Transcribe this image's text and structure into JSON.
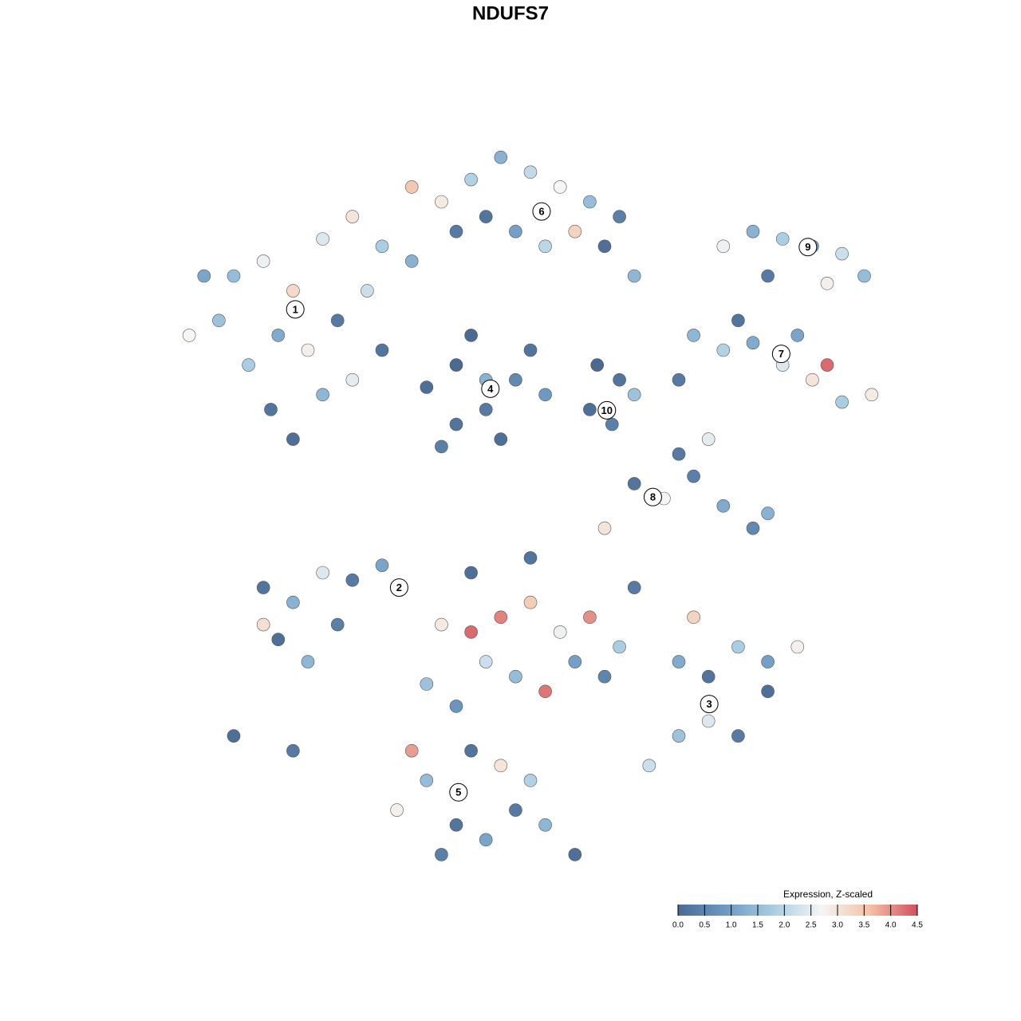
{
  "chart_data": {
    "type": "scatter",
    "title": "NDUFS7",
    "colorbar_title": "Expression, Z-scaled",
    "xlim": [
      0,
      100
    ],
    "ylim": [
      0,
      100
    ],
    "color_stops": [
      0,
      0.9,
      1.8,
      2.7,
      3.6,
      4.5
    ],
    "colors": [
      "#4a6a92",
      "#6d9ac4",
      "#a9cde3",
      "#f5f5f3",
      "#f4c2a8",
      "#d2515e"
    ],
    "colorbar_lim": [
      0,
      4.5
    ],
    "colorbar_ticks": [
      {
        "value": 0,
        "label": "0.0"
      },
      0.5,
      {
        "value": 1,
        "label": "1.0"
      },
      1.5,
      {
        "value": 2,
        "label": "2.0"
      },
      2.5,
      {
        "value": 3,
        "label": "3.0"
      },
      3.5,
      {
        "value": 4,
        "label": "4.0"
      },
      4.5
    ],
    "x": [
      10,
      14,
      18,
      22,
      26,
      30,
      16,
      12,
      20,
      24,
      28,
      8,
      4,
      15,
      18,
      22,
      26,
      30,
      6,
      34,
      34,
      38,
      42,
      46,
      50,
      54,
      58,
      62,
      44,
      48,
      56,
      40,
      60,
      64,
      52,
      36,
      40,
      44,
      48,
      40,
      46,
      50,
      38,
      42,
      52,
      44,
      58,
      61,
      62,
      59,
      64,
      72,
      76,
      80,
      84,
      88,
      92,
      96,
      78,
      86,
      90,
      70,
      76,
      80,
      84,
      88,
      92,
      90,
      95,
      82,
      64,
      68,
      72,
      76,
      80,
      82,
      70,
      60,
      74,
      14,
      18,
      22,
      26,
      30,
      16,
      20,
      14,
      24,
      10,
      18,
      38,
      42,
      46,
      50,
      54,
      58,
      62,
      44,
      48,
      52,
      56,
      60,
      64,
      50,
      42,
      36,
      34,
      40,
      70,
      74,
      78,
      82,
      86,
      74,
      78,
      70,
      66,
      82,
      72,
      32,
      36,
      40,
      44,
      48,
      52,
      56,
      46,
      38,
      50,
      42
    ],
    "y": [
      80,
      82,
      78,
      85,
      88,
      84,
      72,
      68,
      70,
      74,
      78,
      74,
      72,
      62,
      58,
      64,
      66,
      70,
      80,
      82,
      92,
      90,
      93,
      96,
      94,
      92,
      90,
      88,
      88,
      86,
      86,
      86,
      84,
      80,
      84,
      65,
      68,
      62,
      66,
      60,
      58,
      70,
      57,
      72,
      64,
      66,
      62,
      60,
      66,
      68,
      64,
      72,
      70,
      71,
      68,
      66,
      63,
      64,
      74,
      72,
      68,
      66,
      84,
      86,
      85,
      84,
      83,
      79,
      80,
      80,
      52,
      50,
      53,
      49,
      46,
      48,
      56,
      46,
      58,
      38,
      36,
      40,
      39,
      41,
      31,
      28,
      33,
      33,
      18,
      16,
      33,
      32,
      34,
      36,
      32,
      34,
      30,
      28,
      26,
      24,
      28,
      26,
      38,
      42,
      40,
      25,
      16,
      22,
      28,
      26,
      30,
      28,
      30,
      20,
      18,
      18,
      14,
      24,
      34,
      8,
      12,
      6,
      4,
      8,
      6,
      2,
      14,
      2,
      12,
      16
    ],
    "values": [
      1.5,
      2.6,
      3.2,
      2.4,
      3.0,
      1.8,
      1.2,
      1.8,
      2.8,
      0.3,
      2.2,
      1.6,
      2.7,
      0.2,
      0.1,
      1.4,
      2.5,
      0.2,
      1.1,
      1.3,
      3.5,
      2.9,
      1.9,
      1.3,
      2.1,
      2.7,
      1.5,
      0.4,
      0.2,
      1.0,
      3.3,
      0.3,
      0.1,
      1.4,
      2.0,
      0.1,
      0.0,
      0.3,
      0.6,
      0.2,
      0.1,
      0.2,
      0.4,
      0.0,
      0.9,
      1.3,
      0.1,
      0.4,
      0.2,
      0.0,
      1.6,
      1.4,
      1.9,
      1.2,
      2.4,
      3.0,
      1.8,
      2.9,
      0.2,
      1.1,
      4.3,
      0.3,
      2.6,
      1.3,
      1.8,
      1.0,
      2.2,
      2.8,
      1.5,
      0.3,
      0.2,
      2.7,
      0.4,
      1.2,
      0.6,
      1.3,
      0.3,
      3.0,
      2.5,
      0.2,
      1.3,
      2.4,
      0.3,
      1.1,
      0.1,
      1.4,
      3.1,
      0.4,
      0.1,
      0.3,
      2.9,
      4.3,
      4.1,
      3.4,
      2.6,
      4.0,
      1.8,
      2.2,
      1.5,
      4.2,
      1.0,
      0.5,
      0.3,
      0.2,
      0.1,
      1.6,
      3.9,
      0.8,
      1.2,
      0.2,
      1.8,
      1.0,
      2.8,
      2.4,
      0.3,
      1.6,
      2.2,
      0.1,
      3.3,
      2.8,
      1.5,
      0.2,
      1.1,
      0.3,
      1.4,
      0.1,
      3.0,
      0.4,
      1.9,
      0.2
    ],
    "cluster_labels": [
      {
        "label": "1",
        "x": 18.3,
        "y": 75.5
      },
      {
        "label": "2",
        "x": 32.3,
        "y": 38.0
      },
      {
        "label": "3",
        "x": 74.1,
        "y": 22.3
      },
      {
        "label": "4",
        "x": 44.6,
        "y": 64.8
      },
      {
        "label": "5",
        "x": 40.3,
        "y": 10.4
      },
      {
        "label": "6",
        "x": 51.5,
        "y": 88.7
      },
      {
        "label": "7",
        "x": 83.8,
        "y": 69.5
      },
      {
        "label": "8",
        "x": 66.5,
        "y": 50.2
      },
      {
        "label": "9",
        "x": 87.4,
        "y": 83.9
      },
      {
        "label": "10",
        "x": 60.3,
        "y": 61.9
      }
    ]
  }
}
